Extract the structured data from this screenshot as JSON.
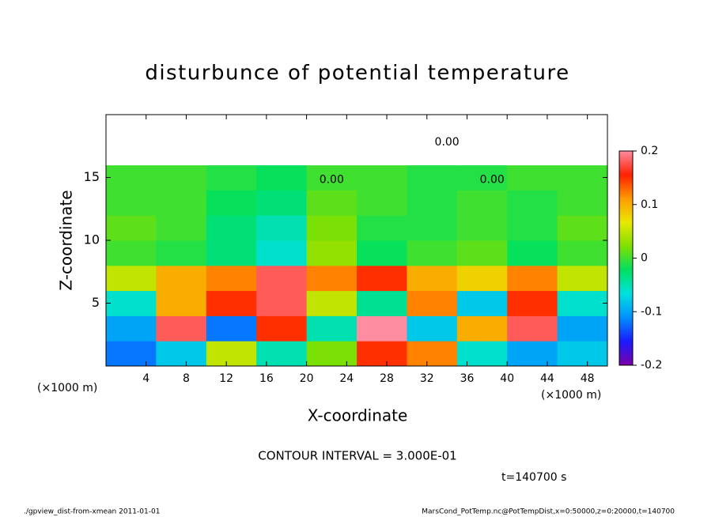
{
  "chart_data": {
    "type": "heatmap",
    "title": "disturbunce of potential temperature",
    "xlabel": "X-coordinate",
    "ylabel": "Z-coordinate",
    "x_unit": "(×1000 m)",
    "y_unit": "(×1000 m)",
    "contour_interval": "CONTOUR INTERVAL = 3.000E-01",
    "time_label": "t=140700 s",
    "footer_left": "./gpview_dist-from-xmean  2011-01-01",
    "footer_right": "MarsCond_PotTemp.nc@PotTempDist,x=0:50000,z=0:20000,t=140700",
    "x": [
      2.5,
      7.5,
      12.5,
      17.5,
      22.5,
      27.5,
      32.5,
      37.5,
      42.5,
      47.5
    ],
    "y": [
      1,
      3,
      5,
      7,
      9,
      11,
      13,
      15,
      17,
      19
    ],
    "values": [
      [
        -0.12,
        -0.08,
        0.05,
        -0.05,
        0.02,
        0.15,
        0.12,
        -0.06,
        -0.1,
        -0.08
      ],
      [
        -0.1,
        0.18,
        -0.12,
        0.15,
        -0.05,
        0.2,
        -0.08,
        0.1,
        0.18,
        -0.1
      ],
      [
        -0.06,
        0.1,
        0.15,
        0.18,
        0.05,
        -0.04,
        0.12,
        -0.08,
        0.15,
        -0.06
      ],
      [
        0.05,
        0.1,
        0.12,
        0.18,
        0.12,
        0.15,
        0.1,
        0.08,
        0.12,
        0.05
      ],
      [
        0.0,
        -0.01,
        -0.03,
        -0.06,
        0.03,
        -0.02,
        0.0,
        0.01,
        -0.02,
        0.0
      ],
      [
        0.01,
        0.0,
        -0.03,
        -0.05,
        0.02,
        -0.01,
        -0.01,
        0.0,
        -0.01,
        0.01
      ],
      [
        0.0,
        0.0,
        -0.02,
        -0.03,
        0.01,
        0.0,
        -0.01,
        0.0,
        -0.01,
        0.0
      ],
      [
        0.0,
        0.0,
        -0.01,
        -0.02,
        0.0,
        0.0,
        -0.01,
        -0.01,
        0.0,
        0.0
      ],
      [
        0.25,
        0.25,
        0.25,
        0.25,
        0.25,
        0.25,
        0.25,
        0.25,
        0.25,
        0.25
      ],
      [
        0.25,
        0.25,
        0.25,
        0.25,
        0.25,
        0.25,
        0.25,
        0.25,
        0.25,
        0.25
      ]
    ],
    "contour_labels": [
      {
        "x": 34,
        "y": 17.8,
        "text": "0.00"
      },
      {
        "x": 22.5,
        "y": 14.8,
        "text": "0.00"
      },
      {
        "x": 38.5,
        "y": 14.8,
        "text": "0.00"
      }
    ],
    "xlim": [
      0,
      50
    ],
    "ylim": [
      0,
      20
    ],
    "xticks": [
      4,
      8,
      12,
      16,
      20,
      24,
      28,
      32,
      36,
      40,
      44,
      48
    ],
    "yticks": [
      5,
      10,
      15
    ],
    "zlim": [
      -0.2,
      0.2
    ],
    "zticks": [
      -0.2,
      -0.1,
      0,
      0.1,
      0.2
    ],
    "colorscale": [
      "#7a00a8",
      "#1a1aff",
      "#0090ff",
      "#00e0e0",
      "#00e060",
      "#80e000",
      "#e8e800",
      "#ff9a00",
      "#ff2000",
      "#ff8ca0"
    ],
    "over_color": "#ffffff"
  }
}
